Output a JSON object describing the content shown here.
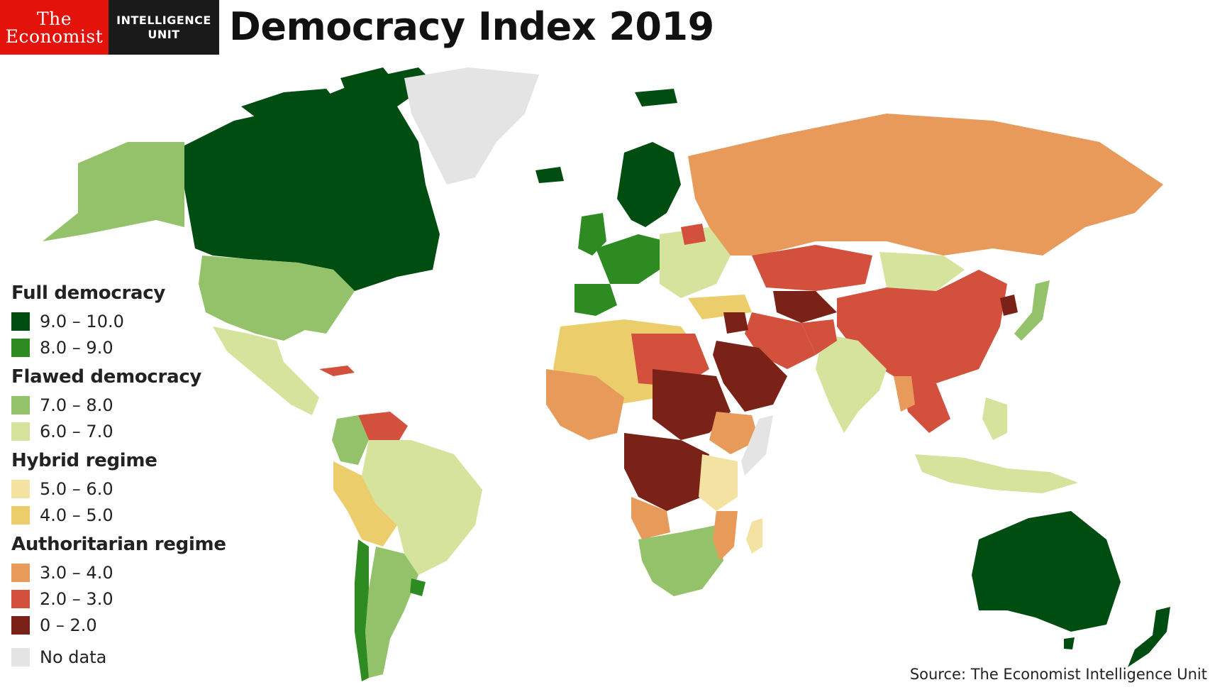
{
  "logo": {
    "line1": "The",
    "line2": "Economist",
    "unit_line1": "INTELLIGENCE",
    "unit_line2": "UNIT"
  },
  "title": "Democracy Index 2019",
  "legend": {
    "groups": [
      {
        "title": "Full democracy",
        "items": [
          {
            "label": "9.0 – 10.0",
            "color": "#004d12"
          },
          {
            "label": "8.0 – 9.0",
            "color": "#2e8b22"
          }
        ]
      },
      {
        "title": "Flawed democracy",
        "items": [
          {
            "label": "7.0 – 8.0",
            "color": "#94c26a"
          },
          {
            "label": "6.0 – 7.0",
            "color": "#d5e39c"
          }
        ]
      },
      {
        "title": "Hybrid regime",
        "items": [
          {
            "label": "5.0 – 6.0",
            "color": "#f3e2a2"
          },
          {
            "label": "4.0 – 5.0",
            "color": "#ebcd6b"
          }
        ]
      },
      {
        "title": "Authoritarian regime",
        "items": [
          {
            "label": "3.0 – 4.0",
            "color": "#e89a5a"
          },
          {
            "label": "2.0 – 3.0",
            "color": "#d3503c"
          },
          {
            "label": "0 – 2.0",
            "color": "#7a2217"
          }
        ]
      },
      {
        "title": "",
        "items": [
          {
            "label": "No data",
            "color": "#e4e4e4"
          }
        ]
      }
    ]
  },
  "source": "Source: The Economist Intelligence Unit"
}
